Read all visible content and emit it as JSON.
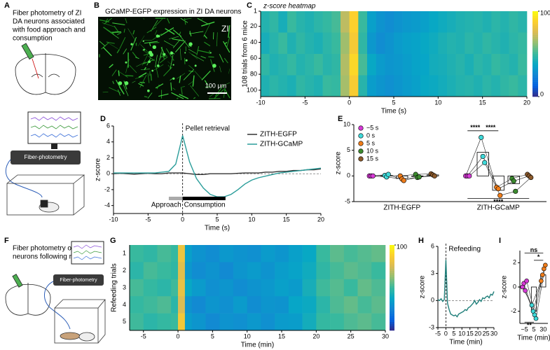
{
  "figure": {
    "panel_A": {
      "letter": "A",
      "text": [
        "Fiber photometry of ZI",
        "DA neurons associated",
        "with food approach and",
        "consumption"
      ],
      "device": "Fiber-photometry"
    },
    "panel_B": {
      "letter": "B",
      "title": "GCaMP-EGFP expression in ZI DA neurons",
      "region": "ZI",
      "scale": "100 μm"
    },
    "panel_F": {
      "letter": "F",
      "text": [
        "Fiber photometry of ZI DA",
        "neurons following refeeding"
      ],
      "device": "Fiber-photometry"
    }
  },
  "chart_data": [
    {
      "type": "heatmap",
      "panel": "C",
      "title": "z-score heatmap",
      "xlabel": "Time (s)",
      "ylabel": "108 trials from 6 mice",
      "bins": [
        -10,
        -9,
        -8,
        -7,
        -6,
        -5,
        -4,
        -3,
        -2,
        -1,
        0,
        1,
        2,
        3,
        4,
        5,
        6,
        7,
        8,
        9,
        10,
        11,
        12,
        13,
        14,
        15,
        16,
        17,
        18,
        19,
        20
      ],
      "rows": [
        [
          45,
          48,
          42,
          50,
          46,
          44,
          47,
          49,
          52,
          70,
          88,
          50,
          35,
          30,
          28,
          30,
          32,
          33,
          35,
          38,
          40,
          42,
          44,
          45,
          46,
          44,
          47,
          45,
          48,
          46
        ],
        [
          42,
          46,
          50,
          44,
          48,
          45,
          43,
          47,
          50,
          65,
          85,
          48,
          32,
          28,
          30,
          33,
          35,
          36,
          38,
          40,
          43,
          45,
          44,
          47,
          45,
          48,
          46,
          44,
          47,
          49
        ],
        [
          48,
          44,
          46,
          49,
          45,
          47,
          50,
          46,
          48,
          68,
          90,
          52,
          38,
          33,
          31,
          32,
          34,
          36,
          37,
          41,
          42,
          44,
          46,
          43,
          47,
          45,
          49,
          47,
          45,
          50
        ],
        [
          44,
          47,
          45,
          43,
          48,
          46,
          44,
          50,
          49,
          66,
          86,
          46,
          34,
          31,
          29,
          31,
          33,
          35,
          38,
          39,
          41,
          43,
          45,
          46,
          44,
          47,
          45,
          48,
          50,
          47
        ]
      ],
      "xlim": [
        -10,
        20
      ],
      "xticks": [
        -10,
        -5,
        0,
        5,
        10,
        15,
        20
      ],
      "ylim": [
        1,
        108
      ],
      "yticks": [
        1,
        20,
        40,
        60,
        80,
        100
      ],
      "y_inverted": true,
      "zlim": [
        0,
        100
      ],
      "zticks": [
        0,
        100
      ],
      "colormap": [
        "#352a87",
        "#0363e1",
        "#1485d4",
        "#06a7c6",
        "#38b99e",
        "#92bf73",
        "#d9ba56",
        "#fcce2e",
        "#f9fb0e"
      ]
    },
    {
      "type": "line",
      "panel": "D",
      "xlabel": "Time (s)",
      "ylabel": "z-score",
      "x": [
        -10,
        -9,
        -8,
        -7,
        -6,
        -5,
        -4,
        -3,
        -2,
        -1,
        0,
        1,
        2,
        3,
        4,
        5,
        6,
        7,
        8,
        9,
        10,
        11,
        12,
        13,
        14,
        15,
        16,
        17,
        18,
        19,
        20
      ],
      "series": [
        {
          "name": "ZITH-EGFP",
          "color": "#333333",
          "values": [
            0,
            0.05,
            0,
            -0.05,
            0,
            0.05,
            0,
            0,
            0.1,
            0.1,
            0.1,
            0,
            -0.1,
            -0.1,
            0,
            0,
            0,
            0,
            0.05,
            0.1,
            0.1,
            0.1,
            0.2,
            0.2,
            0.3,
            0.3,
            0.4,
            0.4,
            0.5,
            0.5,
            0.6
          ]
        },
        {
          "name": "ZITH-GCaMP",
          "color": "#2a9d9a",
          "values": [
            0.1,
            0.1,
            0.1,
            0.1,
            0.1,
            0.1,
            0.1,
            0.2,
            0.3,
            1.2,
            4.8,
            1.5,
            -0.6,
            -1.8,
            -2.6,
            -2.9,
            -2.9,
            -2.6,
            -2.0,
            -1.3,
            -0.8,
            -0.5,
            -0.3,
            -0.1,
            0.1,
            0.2,
            0.3,
            0.4,
            0.5,
            0.6,
            0.7
          ]
        }
      ],
      "xlim": [
        -10,
        20
      ],
      "xticks": [
        -10,
        -5,
        0,
        5,
        10,
        15,
        20
      ],
      "ylim": [
        -5,
        6
      ],
      "yticks": [
        -4,
        -2,
        0,
        2,
        4,
        6
      ],
      "vline": 0,
      "hline": 0,
      "annotation": "Pellet retrieval",
      "legend": "upper right",
      "events": [
        {
          "label": "Approach",
          "start": -2,
          "end": 0,
          "color": "#aaaaaa"
        },
        {
          "label": "Consumption",
          "start": 0,
          "end": 6.2,
          "color": "#000000"
        }
      ]
    },
    {
      "type": "dotbar",
      "panel": "E",
      "ylabel": "z-score",
      "categories": [
        "ZITH-EGFP",
        "ZITH-GCaMP"
      ],
      "series": [
        {
          "name": "−5 s",
          "color": "#d63ad6",
          "values": [
            0,
            0
          ],
          "points": [
            [
              0,
              0,
              0
            ],
            [
              0,
              0,
              0
            ]
          ]
        },
        {
          "name": "0 s",
          "color": "#3fd9d9",
          "values": [
            0.1,
            4.6
          ],
          "points": [
            [
              0.1,
              -0.2,
              0.3
            ],
            [
              7.5,
              3.8,
              2.6
            ]
          ]
        },
        {
          "name": "5 s",
          "color": "#f07d1a",
          "values": [
            -0.5,
            -2.8
          ],
          "points": [
            [
              0,
              -0.6,
              -0.9
            ],
            [
              -2.2,
              -2.5,
              -3.8
            ]
          ]
        },
        {
          "name": "10 s",
          "color": "#3c8a2e",
          "values": [
            -0.1,
            -1.5
          ],
          "points": [
            [
              0.3,
              -0.3,
              -0.2
            ],
            [
              -0.5,
              -1.0,
              -3.0
            ]
          ]
        },
        {
          "name": "15 s",
          "color": "#8c5a2b",
          "values": [
            0.2,
            0
          ],
          "points": [
            [
              0.4,
              0.2,
              0
            ],
            [
              0.3,
              0,
              -0.3
            ]
          ]
        }
      ],
      "ylim": [
        -5,
        10
      ],
      "yticks": [
        -5,
        0,
        5,
        10
      ],
      "legend": "upper left",
      "annotations": [
        {
          "text": "****",
          "category": 1,
          "from": 0,
          "to": 1,
          "y": 8.8
        },
        {
          "text": "****",
          "category": 1,
          "from": 1,
          "to": 2,
          "y": 8.8
        },
        {
          "text": "****",
          "category": 1,
          "from": 0,
          "to": 4,
          "y": -4.4
        }
      ]
    },
    {
      "type": "heatmap",
      "panel": "G",
      "xlabel": "Time (min)",
      "ylabel": "Refeeding trials",
      "categories": [
        "1",
        "2",
        "3",
        "4",
        "5"
      ],
      "bins": [
        -7,
        -5,
        -3,
        -1,
        0,
        1,
        2,
        4,
        6,
        8,
        10,
        12,
        14,
        16,
        18,
        20,
        22,
        24,
        26,
        28,
        30
      ],
      "rows": [
        [
          50,
          48,
          52,
          49,
          82,
          35,
          30,
          28,
          32,
          30,
          29,
          33,
          31,
          35,
          38,
          50,
          55,
          52,
          54,
          56
        ],
        [
          47,
          52,
          50,
          48,
          78,
          32,
          28,
          30,
          27,
          31,
          33,
          30,
          34,
          36,
          40,
          48,
          52,
          55,
          53,
          50
        ],
        [
          52,
          49,
          47,
          51,
          80,
          38,
          33,
          29,
          31,
          28,
          30,
          32,
          35,
          33,
          42,
          51,
          54,
          50,
          56,
          53
        ],
        [
          49,
          51,
          53,
          47,
          76,
          30,
          27,
          31,
          29,
          33,
          28,
          31,
          30,
          37,
          39,
          47,
          53,
          56,
          52,
          55
        ],
        [
          51,
          47,
          49,
          50,
          84,
          34,
          31,
          27,
          30,
          29,
          32,
          29,
          33,
          34,
          41,
          49,
          50,
          53,
          55,
          52
        ]
      ],
      "xlim": [
        -7,
        30
      ],
      "xticks": [
        -5,
        0,
        5,
        10,
        15,
        20,
        25,
        30
      ],
      "zlim": [
        0,
        100
      ],
      "zticks": [
        100
      ],
      "colormap": [
        "#352a87",
        "#0363e1",
        "#1485d4",
        "#06a7c6",
        "#38b99e",
        "#92bf73",
        "#d9ba56",
        "#fcce2e",
        "#f9fb0e"
      ]
    },
    {
      "type": "line",
      "panel": "H",
      "xlabel": "Time (min)",
      "ylabel": "z-score",
      "x": [
        -5,
        -4,
        -3,
        -2,
        -1,
        0,
        1,
        2,
        3,
        4,
        5,
        6,
        7,
        8,
        9,
        10,
        11,
        12,
        13,
        14,
        15,
        16,
        17,
        18,
        19,
        20,
        21,
        22,
        23,
        24,
        25,
        26,
        27,
        28,
        29,
        30
      ],
      "series": [
        {
          "color": "#1f7f7a",
          "values": [
            0.1,
            0,
            0.2,
            -0.1,
            0.1,
            4.5,
            -0.3,
            -1.0,
            -1.5,
            -1.6,
            -1.7,
            -1.6,
            -1.8,
            -1.5,
            -1.4,
            -1.3,
            -1.2,
            -1.0,
            -1.1,
            -0.8,
            -0.7,
            -0.5,
            -0.3,
            0,
            -0.4,
            -0.2,
            0.1,
            -0.1,
            0.3,
            0.2,
            0.4,
            0.5,
            0.3,
            0.7,
            0.6,
            1.0
          ]
        }
      ],
      "xlim": [
        -5,
        30
      ],
      "xticks": [
        -5,
        0,
        5,
        10,
        15,
        20,
        25,
        30
      ],
      "ylim": [
        -3,
        6
      ],
      "yticks": [
        -3,
        0,
        3,
        6
      ],
      "vline": 0,
      "hline": 0,
      "annotation": "Refeeding"
    },
    {
      "type": "dotbar",
      "panel": "I",
      "xlabel": "Time (min)",
      "ylabel": "z-score",
      "categories": [
        "−5",
        "5",
        "30"
      ],
      "colors": [
        "#d63ad6",
        "#3fd9d9",
        "#f07d1a"
      ],
      "values": [
        0,
        -2,
        1
      ],
      "points": [
        [
          0,
          0.3,
          -0.3,
          0.5
        ],
        [
          -1.5,
          -2,
          -2.3,
          -2.6
        ],
        [
          0.5,
          1,
          1.5,
          1.8
        ]
      ],
      "ylim": [
        -3,
        3
      ],
      "yticks": [
        -2,
        0,
        2
      ],
      "annotations": [
        {
          "text": "ns",
          "from": 0,
          "to": 2,
          "y": 2.8
        },
        {
          "text": "*",
          "from": 1,
          "to": 2,
          "y": 2.2
        },
        {
          "text": "**",
          "from": 0,
          "to": 1,
          "y": -2.9
        }
      ]
    }
  ]
}
